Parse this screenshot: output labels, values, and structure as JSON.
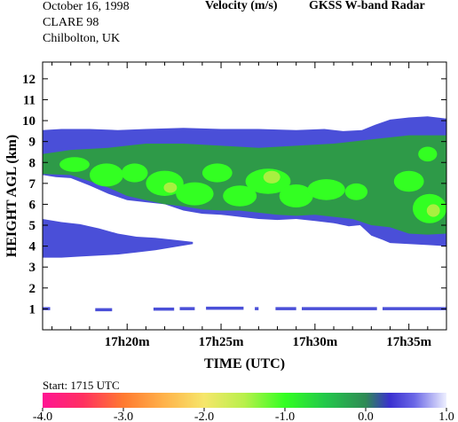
{
  "header": {
    "date": "October  16, 1998",
    "campaign": "CLARE 98",
    "site": "Chilbolton, UK",
    "variable": "Velocity (m/s)",
    "instrument": "GKSS  W-band Radar"
  },
  "footer": {
    "start": "Start: 1715 UTC"
  },
  "chart_data": {
    "type": "heatmap",
    "title": "Velocity (m/s)",
    "xlabel": "TIME (UTC)",
    "ylabel": "HEIGHT AGL (km)",
    "xlim_minutes": [
      15.5,
      37.0
    ],
    "ylim": [
      0,
      12.8
    ],
    "x_tick_minutes": [
      20,
      25,
      30,
      35
    ],
    "x_tick_labels": [
      "17h20m",
      "17h25m",
      "17h30m",
      "17h35m"
    ],
    "y_ticks": [
      1,
      2,
      3,
      4,
      5,
      6,
      7,
      8,
      9,
      10,
      11,
      12
    ],
    "y_tick_labels": [
      "1",
      "2",
      "3",
      "4",
      "5",
      "6",
      "7",
      "8",
      "9",
      "10",
      "11",
      "12"
    ],
    "colorbar": {
      "min": -4.0,
      "max": 1.0,
      "tick_values": [
        -4,
        -3,
        -2,
        -1,
        0,
        1
      ],
      "tick_labels": [
        "-4.0",
        "-3.0",
        "-2.0",
        "-1.0",
        "0.0",
        "1.0"
      ],
      "stops": [
        {
          "v": -4.0,
          "c": "#ff1493"
        },
        {
          "v": -3.5,
          "c": "#ff3060"
        },
        {
          "v": -3.0,
          "c": "#ff7a30"
        },
        {
          "v": -2.5,
          "c": "#ffb24a"
        },
        {
          "v": -2.0,
          "c": "#f6e66a"
        },
        {
          "v": -1.5,
          "c": "#b8f04a"
        },
        {
          "v": -1.0,
          "c": "#33ff22"
        },
        {
          "v": -0.5,
          "c": "#22c84a"
        },
        {
          "v": 0.0,
          "c": "#2f8a55"
        },
        {
          "v": 0.3,
          "c": "#3a2fd0"
        },
        {
          "v": 0.6,
          "c": "#6a66e6"
        },
        {
          "v": 1.0,
          "c": "#eef0ff"
        }
      ]
    },
    "palette": {
      "weak_echo": "#4a4fd8",
      "moderate_fall": "#2e9a48",
      "fast_fall": "#33ff22",
      "fastest_fall": "#a8f040",
      "surface_echo": "#4a4fd8"
    },
    "layers": [
      {
        "name": "main_cloud",
        "color_key": "weak_echo",
        "top": [
          [
            15.5,
            9.55
          ],
          [
            16.5,
            9.6
          ],
          [
            18,
            9.6
          ],
          [
            19.5,
            9.55
          ],
          [
            21,
            9.6
          ],
          [
            23,
            9.65
          ],
          [
            25,
            9.6
          ],
          [
            27,
            9.6
          ],
          [
            29,
            9.55
          ],
          [
            30.5,
            9.6
          ],
          [
            31.5,
            9.5
          ],
          [
            32.5,
            9.55
          ],
          [
            33.2,
            9.8
          ],
          [
            34,
            10.05
          ],
          [
            35,
            10.15
          ],
          [
            36,
            10.2
          ],
          [
            37,
            10.1
          ]
        ],
        "bottom": [
          [
            15.5,
            7.4
          ],
          [
            16.2,
            7.3
          ],
          [
            17,
            7.25
          ],
          [
            18,
            6.9
          ],
          [
            19,
            6.5
          ],
          [
            20,
            6.2
          ],
          [
            21,
            6.1
          ],
          [
            22,
            6.0
          ],
          [
            23,
            5.7
          ],
          [
            24,
            5.55
          ],
          [
            25,
            5.5
          ],
          [
            26,
            5.4
          ],
          [
            27,
            5.3
          ],
          [
            28,
            5.25
          ],
          [
            29,
            5.3
          ],
          [
            30,
            5.2
          ],
          [
            31,
            5.1
          ],
          [
            31.8,
            4.95
          ],
          [
            32.4,
            5.0
          ],
          [
            33,
            4.5
          ],
          [
            33.6,
            4.3
          ],
          [
            34,
            4.15
          ],
          [
            35,
            4.1
          ],
          [
            36,
            4.05
          ],
          [
            37,
            4.0
          ]
        ]
      },
      {
        "name": "lower_band",
        "color_key": "weak_echo",
        "top": [
          [
            15.5,
            5.3
          ],
          [
            16.5,
            5.15
          ],
          [
            17.5,
            5.05
          ],
          [
            18.5,
            4.85
          ],
          [
            19.5,
            4.6
          ],
          [
            20.5,
            4.45
          ],
          [
            21.5,
            4.4
          ],
          [
            22.5,
            4.3
          ],
          [
            23.5,
            4.2
          ]
        ],
        "bottom": [
          [
            15.5,
            3.45
          ],
          [
            16.5,
            3.45
          ],
          [
            17.5,
            3.5
          ],
          [
            18.5,
            3.55
          ],
          [
            19.5,
            3.6
          ],
          [
            20.5,
            3.7
          ],
          [
            21.5,
            3.8
          ],
          [
            22.5,
            3.95
          ],
          [
            23.5,
            4.1
          ]
        ]
      },
      {
        "name": "green_layer",
        "color_key": "moderate_fall",
        "top": [
          [
            15.5,
            8.4
          ],
          [
            17,
            8.6
          ],
          [
            19,
            8.7
          ],
          [
            21,
            8.9
          ],
          [
            23,
            8.9
          ],
          [
            25,
            8.8
          ],
          [
            27,
            8.7
          ],
          [
            29,
            8.8
          ],
          [
            31,
            8.9
          ],
          [
            33,
            9.1
          ],
          [
            35,
            9.3
          ],
          [
            37,
            9.3
          ]
        ],
        "bottom": [
          [
            15.5,
            7.45
          ],
          [
            17,
            7.4
          ],
          [
            18,
            7.1
          ],
          [
            19,
            6.8
          ],
          [
            20,
            6.4
          ],
          [
            21,
            6.2
          ],
          [
            22,
            6.0
          ],
          [
            23,
            5.9
          ],
          [
            24,
            5.75
          ],
          [
            25,
            5.7
          ],
          [
            26,
            5.7
          ],
          [
            27,
            5.6
          ],
          [
            28,
            5.5
          ],
          [
            29,
            5.45
          ],
          [
            30,
            5.5
          ],
          [
            31,
            5.4
          ],
          [
            32,
            5.3
          ],
          [
            33,
            5.0
          ],
          [
            34,
            4.9
          ],
          [
            35,
            4.6
          ],
          [
            36,
            4.55
          ],
          [
            37,
            4.6
          ]
        ]
      }
    ],
    "patches": [
      {
        "color_key": "fast_fall",
        "t": 17.2,
        "h": 7.9,
        "rt": 0.8,
        "rh": 0.35
      },
      {
        "color_key": "fast_fall",
        "t": 18.9,
        "h": 7.4,
        "rt": 0.9,
        "rh": 0.55
      },
      {
        "color_key": "fast_fall",
        "t": 20.4,
        "h": 7.5,
        "rt": 0.7,
        "rh": 0.45
      },
      {
        "color_key": "fast_fall",
        "t": 22.0,
        "h": 7.0,
        "rt": 1.0,
        "rh": 0.6
      },
      {
        "color_key": "fast_fall",
        "t": 23.6,
        "h": 6.5,
        "rt": 1.0,
        "rh": 0.55
      },
      {
        "color_key": "fast_fall",
        "t": 24.8,
        "h": 7.5,
        "rt": 0.8,
        "rh": 0.45
      },
      {
        "color_key": "fast_fall",
        "t": 26.0,
        "h": 6.4,
        "rt": 0.9,
        "rh": 0.5
      },
      {
        "color_key": "fast_fall",
        "t": 27.5,
        "h": 7.1,
        "rt": 1.2,
        "rh": 0.6
      },
      {
        "color_key": "fast_fall",
        "t": 29.0,
        "h": 6.4,
        "rt": 0.9,
        "rh": 0.55
      },
      {
        "color_key": "fast_fall",
        "t": 30.6,
        "h": 6.7,
        "rt": 1.0,
        "rh": 0.5
      },
      {
        "color_key": "fast_fall",
        "t": 32.2,
        "h": 6.6,
        "rt": 0.6,
        "rh": 0.4
      },
      {
        "color_key": "fast_fall",
        "t": 35.0,
        "h": 7.1,
        "rt": 0.8,
        "rh": 0.5
      },
      {
        "color_key": "fast_fall",
        "t": 36.1,
        "h": 5.8,
        "rt": 0.9,
        "rh": 0.7
      },
      {
        "color_key": "fast_fall",
        "t": 36.0,
        "h": 8.4,
        "rt": 0.5,
        "rh": 0.35
      },
      {
        "color_key": "fastest_fall",
        "t": 22.3,
        "h": 6.8,
        "rt": 0.35,
        "rh": 0.25
      },
      {
        "color_key": "fastest_fall",
        "t": 27.7,
        "h": 7.3,
        "rt": 0.45,
        "rh": 0.3
      },
      {
        "color_key": "fastest_fall",
        "t": 36.3,
        "h": 5.7,
        "rt": 0.35,
        "rh": 0.3
      }
    ],
    "surface_echo": [
      {
        "t0": 15.5,
        "t1": 15.9,
        "h": 1.0
      },
      {
        "t0": 18.3,
        "t1": 19.2,
        "h": 0.95
      },
      {
        "t0": 21.4,
        "t1": 22.5,
        "h": 0.98
      },
      {
        "t0": 22.8,
        "t1": 23.6,
        "h": 1.0
      },
      {
        "t0": 24.2,
        "t1": 26.2,
        "h": 1.02
      },
      {
        "t0": 26.8,
        "t1": 27.0,
        "h": 1.0
      },
      {
        "t0": 27.9,
        "t1": 29.0,
        "h": 1.0
      },
      {
        "t0": 29.3,
        "t1": 33.3,
        "h": 1.0
      },
      {
        "t0": 33.6,
        "t1": 37.0,
        "h": 1.0
      }
    ]
  }
}
